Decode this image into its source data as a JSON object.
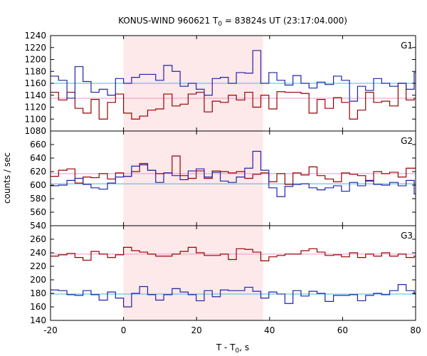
{
  "chart_data": {
    "type": "line",
    "title_main": "KONUS-WIND 960621 T",
    "title_sub": "0",
    "title_rest": " = 83824s UT (23:17:04.000)",
    "xlabel_main": "T - T",
    "xlabel_sub": "0",
    "xlabel_rest": ", s",
    "ylabel": "counts / sec",
    "xlim": [
      -20,
      80
    ],
    "xticks": [
      -20,
      0,
      20,
      40,
      60,
      80
    ],
    "xtick_labels": [
      "-20",
      "0",
      "20",
      "40",
      "60",
      "80"
    ],
    "shaded_interval": [
      0,
      38.2
    ],
    "bin_edges": [
      -20,
      -17.8,
      -15.5,
      -13.3,
      -11.1,
      -8.9,
      -6.7,
      -4.4,
      -2.2,
      0,
      2.2,
      4.4,
      6.6,
      8.8,
      11,
      13.3,
      15.5,
      17.7,
      19.9,
      22.1,
      24.3,
      26.5,
      28.7,
      30.9,
      33.2,
      35.4,
      37.6,
      39.8,
      42.0,
      44.2,
      46.4,
      48.6,
      50.8,
      53.0,
      55.2,
      57.5,
      59.7,
      61.9,
      64.1,
      66.3,
      68.5,
      70.7,
      72.9,
      75.2,
      77.4,
      79.6,
      80
    ],
    "colors": {
      "red": "#990000",
      "blue": "#2222aa",
      "cyan": "#44bbdd",
      "pink": "#ee99cc",
      "shade": "#fde8ea"
    },
    "panels": [
      {
        "name": "G1",
        "ylim": [
          1080,
          1240
        ],
        "yticks": [
          1080,
          1100,
          1120,
          1140,
          1160,
          1180,
          1200,
          1220,
          1240
        ],
        "ytick_labels": [
          "1080",
          "1100",
          "1120",
          "1140",
          "1160",
          "1180",
          "1200",
          "1220",
          "1240"
        ],
        "blue_level": 1160,
        "red_level": 1135,
        "red_values": [
          1145,
          1132,
          1145,
          1118,
          1110,
          1133,
          1100,
          1128,
          1142,
          1110,
          1100,
          1105,
          1115,
          1117,
          1142,
          1122,
          1125,
          1142,
          1145,
          1112,
          1130,
          1128,
          1140,
          1132,
          1145,
          1120,
          1140,
          1117,
          1146,
          1145,
          1145,
          1143,
          1110,
          1133,
          1118,
          1136,
          1128,
          1100,
          1115,
          1145,
          1128,
          1130,
          1122,
          1160,
          1132,
          1135
        ],
        "blue_values": [
          1172,
          1165,
          1135,
          1188,
          1163,
          1145,
          1150,
          1140,
          1168,
          1160,
          1170,
          1175,
          1175,
          1165,
          1190,
          1180,
          1155,
          1160,
          1150,
          1140,
          1168,
          1170,
          1160,
          1178,
          1177,
          1215,
          1160,
          1178,
          1165,
          1157,
          1173,
          1160,
          1152,
          1162,
          1158,
          1172,
          1165,
          1130,
          1155,
          1148,
          1168,
          1160,
          1155,
          1160,
          1150,
          1178
        ]
      },
      {
        "name": "G2",
        "ylim": [
          540,
          680
        ],
        "yticks": [
          540,
          560,
          580,
          600,
          620,
          640,
          660
        ],
        "ytick_labels": [
          "540",
          "560",
          "580",
          "600",
          "620",
          "640",
          "660"
        ],
        "blue_level": 602,
        "red_level": 617,
        "red_values": [
          613,
          622,
          624,
          603,
          612,
          611,
          617,
          609,
          618,
          613,
          620,
          632,
          622,
          617,
          618,
          643,
          614,
          610,
          621,
          610,
          621,
          620,
          618,
          620,
          610,
          616,
          618,
          605,
          617,
          601,
          618,
          615,
          627,
          614,
          609,
          605,
          618,
          616,
          614,
          606,
          620,
          617,
          619,
          612,
          625,
          625
        ],
        "blue_values": [
          599,
          600,
          607,
          610,
          601,
          596,
          594,
          603,
          612,
          613,
          628,
          630,
          622,
          604,
          618,
          614,
          608,
          621,
          624,
          612,
          619,
          606,
          604,
          612,
          625,
          650,
          622,
          596,
          583,
          598,
          601,
          602,
          596,
          593,
          596,
          599,
          591,
          604,
          599,
          607,
          601,
          600,
          604,
          599,
          607,
          587
        ]
      },
      {
        "name": "G3",
        "ylim": [
          140,
          280
        ],
        "yticks": [
          140,
          160,
          180,
          200,
          220,
          240,
          260
        ],
        "ytick_labels": [
          "140",
          "160",
          "180",
          "200",
          "220",
          "240",
          "260"
        ],
        "blue_level": 179,
        "red_level": 238,
        "red_values": [
          235,
          237,
          239,
          233,
          229,
          242,
          238,
          233,
          237,
          248,
          243,
          241,
          238,
          235,
          235,
          238,
          242,
          248,
          240,
          236,
          236,
          238,
          230,
          246,
          245,
          241,
          228,
          234,
          236,
          238,
          238,
          243,
          246,
          241,
          236,
          237,
          234,
          240,
          233,
          238,
          235,
          240,
          235,
          238,
          233,
          235
        ],
        "blue_values": [
          185,
          184,
          178,
          177,
          184,
          178,
          170,
          182,
          173,
          160,
          180,
          190,
          178,
          170,
          178,
          187,
          182,
          178,
          169,
          184,
          175,
          185,
          184,
          184,
          189,
          183,
          173,
          182,
          179,
          165,
          184,
          176,
          183,
          180,
          168,
          177,
          177,
          178,
          169,
          177,
          180,
          178,
          184,
          193,
          184,
          179
        ]
      }
    ]
  }
}
